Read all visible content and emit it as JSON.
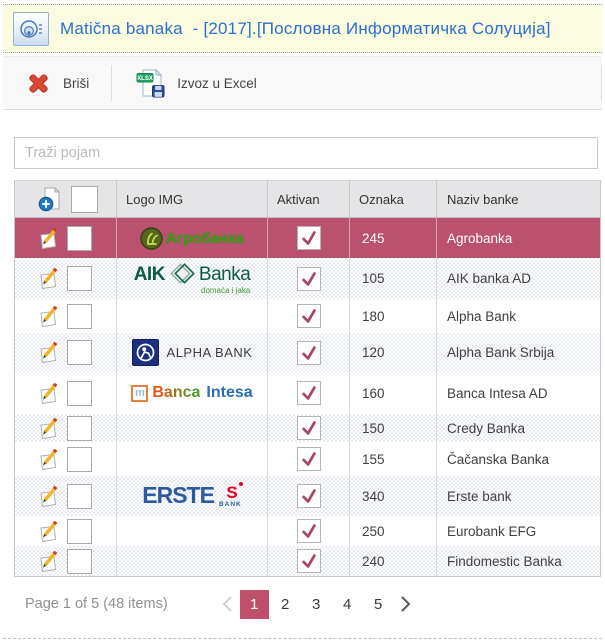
{
  "window": {
    "title": "Matična banaka  - [2017].[Пословна Информатичка Солуција]"
  },
  "toolbar": {
    "delete_label": "Briši",
    "export_label": "Izvoz u Excel",
    "export_badge": "XLSX"
  },
  "search": {
    "placeholder": "Traži pojam",
    "value": ""
  },
  "grid": {
    "columns": {
      "logo": "Logo IMG",
      "active": "Aktivan",
      "code": "Oznaka",
      "name": "Naziv banke"
    },
    "rows": [
      {
        "code": "245",
        "name": "Agrobanka",
        "active": true,
        "selected": true,
        "logo": "agrobanka"
      },
      {
        "code": "105",
        "name": "AIK banka AD",
        "active": true,
        "selected": false,
        "logo": "aik"
      },
      {
        "code": "180",
        "name": "Alpha Bank",
        "active": true,
        "selected": false,
        "logo": null
      },
      {
        "code": "120",
        "name": "Alpha Bank Srbija",
        "active": true,
        "selected": false,
        "logo": "alphabank"
      },
      {
        "code": "160",
        "name": "Banca Intesa AD",
        "active": true,
        "selected": false,
        "logo": "bancaintesa"
      },
      {
        "code": "150",
        "name": "Credy Banka",
        "active": true,
        "selected": false,
        "logo": null
      },
      {
        "code": "155",
        "name": "Čačanska Banka",
        "active": true,
        "selected": false,
        "logo": null
      },
      {
        "code": "340",
        "name": "Erste bank",
        "active": true,
        "selected": false,
        "logo": "erste"
      },
      {
        "code": "250",
        "name": "Eurobank EFG",
        "active": true,
        "selected": false,
        "logo": null
      },
      {
        "code": "240",
        "name": "Findomestic Banka",
        "active": true,
        "selected": false,
        "logo": null
      }
    ],
    "logos": {
      "agrobanka": {
        "text": "Агробанка"
      },
      "aik": {
        "text1": "AIK",
        "text2": "Banka",
        "tagline": "domaća i jaka"
      },
      "alphabank": {
        "text": "ALPHA BANK"
      },
      "bancaintesa": {
        "badge": "m",
        "text1": "Banca",
        "text2": "Intesa"
      },
      "erste": {
        "text": "ERSTE",
        "symbol": "S",
        "sub": "BANK"
      }
    }
  },
  "pager": {
    "summary": "Page 1 of 5 (48 items)",
    "pages": [
      "1",
      "2",
      "3",
      "4",
      "5"
    ],
    "current": "1"
  },
  "colors": {
    "accent": "#b9516f",
    "active_page": "#c04f6b",
    "checkmark": "#a8436a",
    "title_text": "#2a6fd0",
    "titlebar_bg": "#fbfbdf"
  }
}
